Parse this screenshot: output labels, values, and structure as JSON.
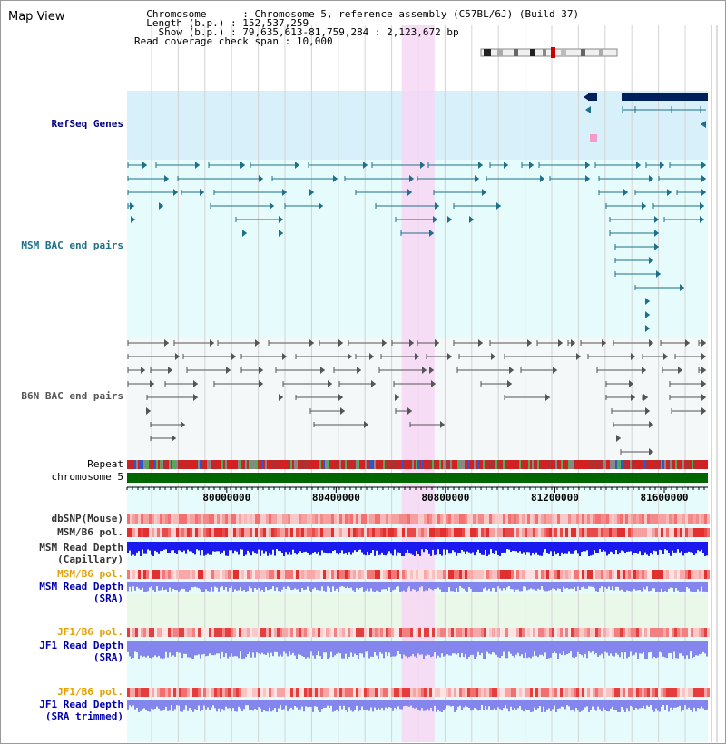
{
  "app": {
    "title": "Map View"
  },
  "info": {
    "chromosome_label": "Chromosome",
    "chromosome_value": "Chromosome 5, reference assembly (C57BL/6J) (Build 37)",
    "length_label": "Length (b.p.)",
    "length_value": "152,537,259",
    "show_label": "Show (b.p.)",
    "show_value": "79,635,613-81,759,284 : 2,123,672 bp",
    "span_label": "Read coverage check span",
    "span_value": "10,000"
  },
  "tracks": {
    "refseq": "RefSeq Genes",
    "msm_bac": "MSM BAC end pairs",
    "b6n_bac": "B6N BAC end pairs",
    "repeat": "Repeat",
    "chromosome": "chromosome 5",
    "dbsnp": "dbSNP(Mouse)",
    "msm_b6_pol": "MSM/B6 pol.",
    "msm_depth_cap_1": "MSM Read Depth",
    "msm_depth_cap_2": "(Capillary)",
    "msm_b6_pol_sra": "MSM/B6 pol.",
    "msm_depth_sra_1": "MSM Read Depth",
    "msm_depth_sra_2": "(SRA)",
    "jf1_b6_pol": "JF1/B6 pol.",
    "jf1_depth_1": "JF1 Read Depth",
    "jf1_depth_2": "(SRA)",
    "jf1_b6_pol_trim": "JF1/B6 pol.",
    "jf1_depth_trim_1": "JF1 Read Depth",
    "jf1_depth_trim_2": "(SRA trimmed)"
  },
  "ruler": {
    "ticks": [
      {
        "label": "80000000",
        "pos": 80000000
      },
      {
        "label": "80400000",
        "pos": 80400000
      },
      {
        "label": "80800000",
        "pos": 80800000
      },
      {
        "label": "81200000",
        "pos": 81200000
      },
      {
        "label": "81600000",
        "pos": 81600000
      }
    ],
    "view_start": 79635613,
    "view_end": 81759284
  },
  "highlight": {
    "start": 80640000,
    "end": 80760000
  },
  "colors": {
    "refseq_bg": "#d8f0fa",
    "track_bg": "#e6fbfb",
    "highlight": "#f7d7f4",
    "gene": "#00205b",
    "msm_pair": "#1e6f8a",
    "b6n_pair": "#555555",
    "chromosome_bar": "#006600",
    "snp": "#e44040",
    "capillary": "#1a1aee",
    "sra_depth": "#8585ee",
    "msm_label": "#1e6f8a",
    "refseq_label": "#000080",
    "pol_label": "#e6a000",
    "depth_label": "#0000b0"
  }
}
